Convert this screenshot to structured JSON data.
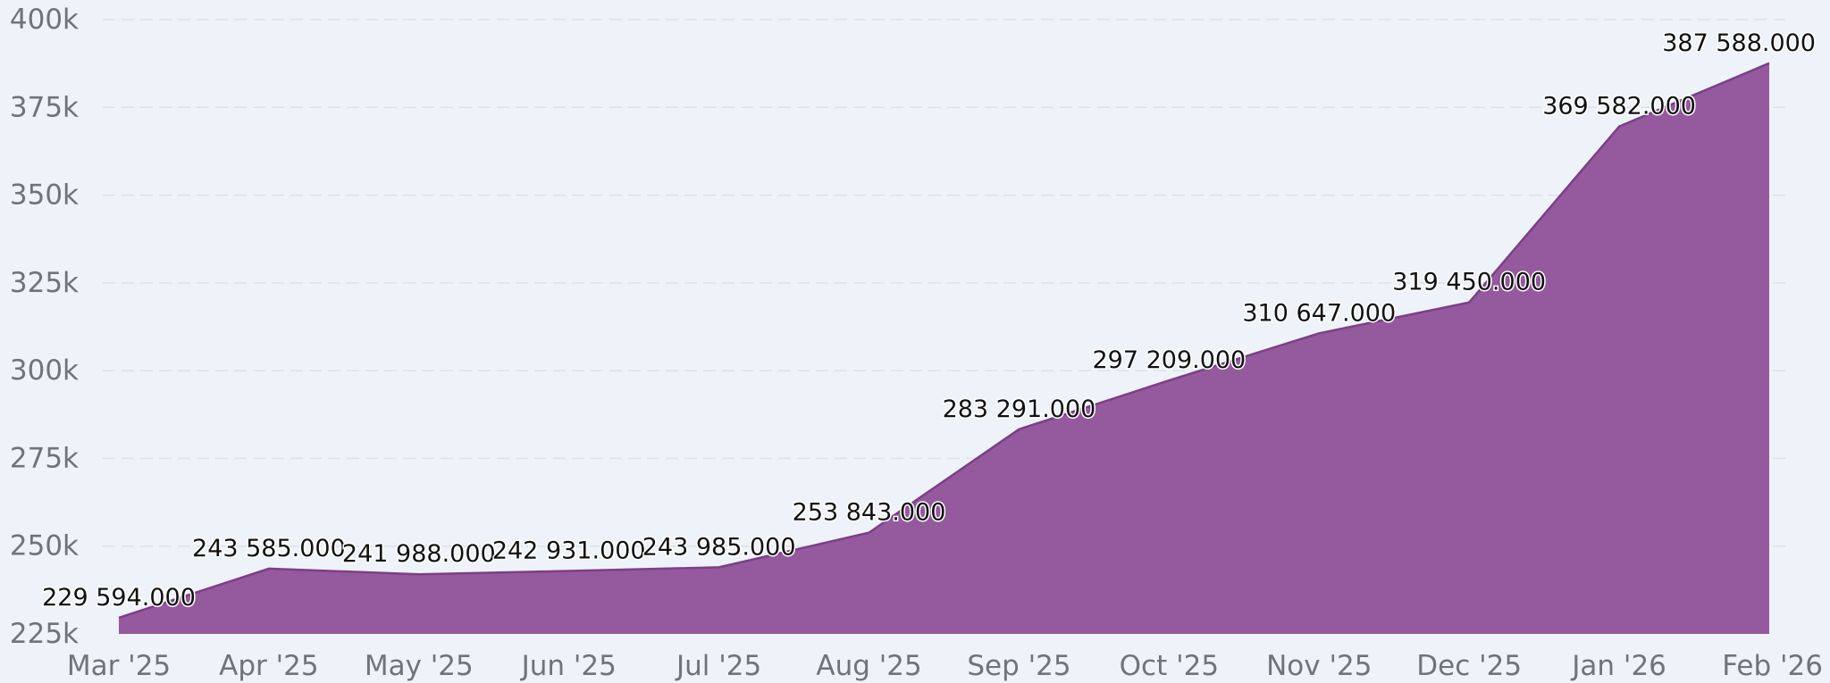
{
  "chart_data": {
    "type": "area",
    "categories": [
      "Mar '25",
      "Apr '25",
      "May '25",
      "Jun '25",
      "Jul '25",
      "Aug '25",
      "Sep '25",
      "Oct '25",
      "Nov '25",
      "Dec '25",
      "Jan '26",
      "Feb '26"
    ],
    "series": [
      {
        "values": [
          229594,
          243585,
          241988,
          242931,
          243985,
          253843,
          283291,
          297209,
          310647,
          319450,
          369582,
          387588
        ],
        "labels": [
          "229 594.000",
          "243 585.000",
          "241 988.000",
          "242 931.000",
          "243 985.000",
          "253 843.000",
          "283 291.000",
          "297 209.000",
          "310 647.000",
          "319 450.000",
          "369 582.000",
          "387 588.000"
        ]
      }
    ],
    "y_ticks": [
      225000,
      250000,
      275000,
      300000,
      325000,
      350000,
      375000,
      400000
    ],
    "y_tick_labels": [
      "225k",
      "250k",
      "275k",
      "300k",
      "325k",
      "350k",
      "375k",
      "400k"
    ],
    "ylim": [
      225000,
      400000
    ],
    "grid": true,
    "legend": "none",
    "colors": {
      "area_fill": "#955a9d",
      "area_stroke": "#7c3f87",
      "background": "#eef3f9",
      "grid": "#dde2e8",
      "tick_text": "#6f7479",
      "label_text": "#111111"
    }
  }
}
